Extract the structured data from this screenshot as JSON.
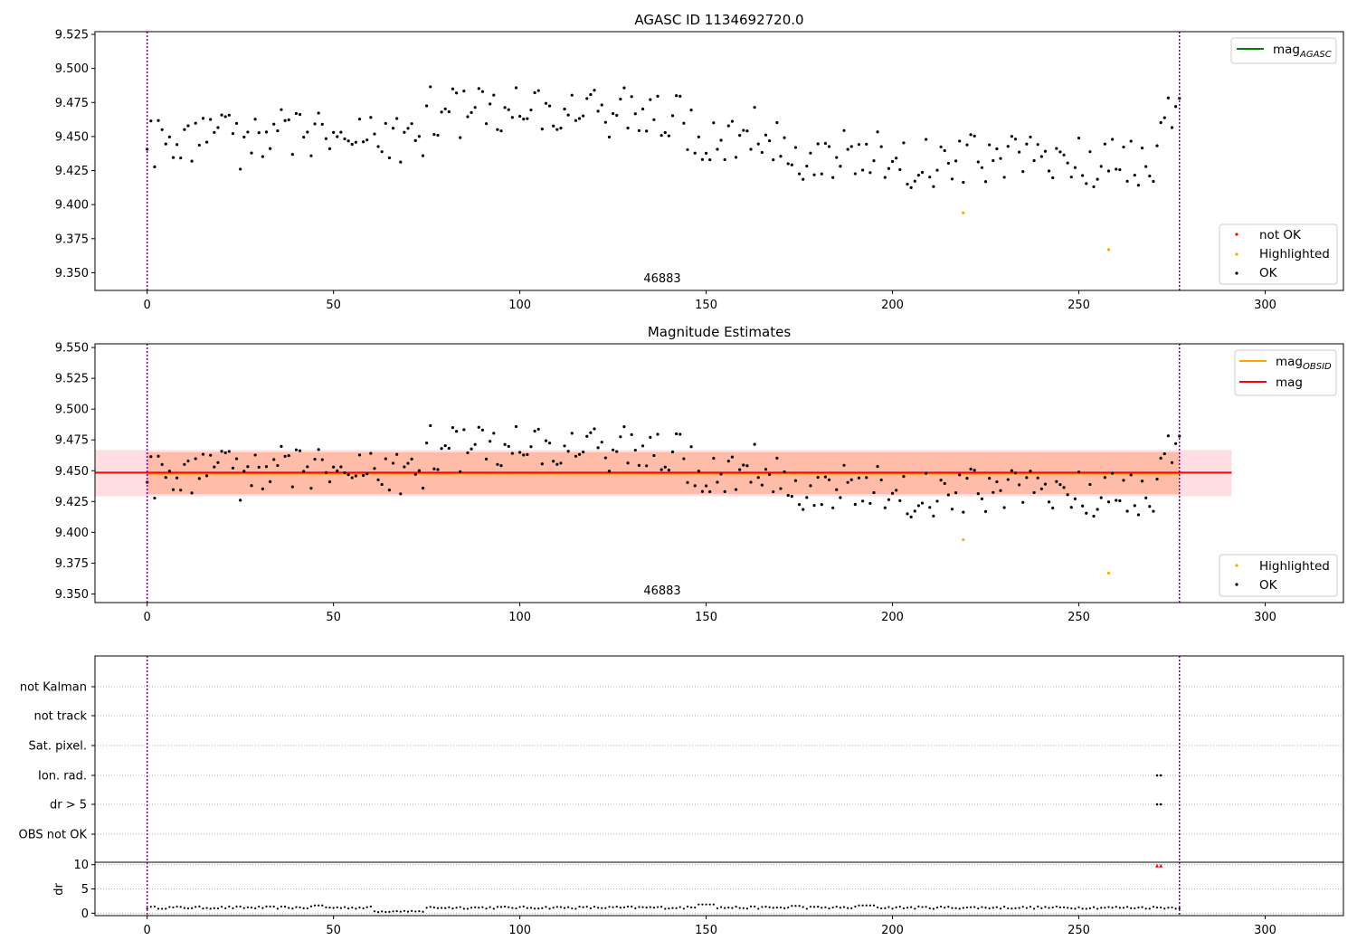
{
  "chart_data": [
    {
      "type": "scatter",
      "title": "AGASC ID 1134692720.0",
      "xlim": [
        -14,
        321
      ],
      "ylim": [
        9.337,
        9.527
      ],
      "xticks": [
        0,
        50,
        100,
        150,
        200,
        250,
        300
      ],
      "yticks": [
        "9.350",
        "9.375",
        "9.400",
        "9.425",
        "9.450",
        "9.475",
        "9.500",
        "9.525"
      ],
      "vlines": [
        0,
        277
      ],
      "annotation": {
        "text": "46883",
        "x": 138.5
      },
      "legends": [
        {
          "placement": "top-right",
          "entries": [
            {
              "label": "mag",
              "sub": "AGASC",
              "color": "#008000",
              "kind": "line"
            }
          ]
        },
        {
          "placement": "bottom-right",
          "entries": [
            {
              "label": "not OK",
              "color": "#ff0000",
              "kind": "dot"
            },
            {
              "label": "Highlighted",
              "color": "#ffa500",
              "kind": "dot"
            },
            {
              "label": "OK",
              "color": "#000000",
              "kind": "dot"
            }
          ]
        }
      ],
      "colors": {
        "ok": "#000000",
        "highlighted": "#ffa500",
        "not_ok": "#ff0000",
        "vline": "#800080"
      }
    },
    {
      "type": "scatter",
      "title": "Magnitude Estimates",
      "xlim": [
        -14,
        321
      ],
      "ylim": [
        9.343,
        9.553
      ],
      "xticks": [
        0,
        50,
        100,
        150,
        200,
        250,
        300
      ],
      "yticks": [
        "9.350",
        "9.375",
        "9.400",
        "9.425",
        "9.450",
        "9.475",
        "9.500",
        "9.525",
        "9.550"
      ],
      "vlines": [
        0,
        277
      ],
      "annotation": {
        "text": "46883",
        "x": 138.5
      },
      "mag": 9.4485,
      "mag_obsid": 9.4475,
      "band_outer": [
        9.43,
        9.466
      ],
      "band_inner": [
        9.431,
        9.465
      ],
      "band_x": [
        -14,
        291
      ],
      "legends": [
        {
          "placement": "top-right",
          "entries": [
            {
              "label": "mag",
              "sub": "OBSID",
              "color": "#ffa500",
              "kind": "line"
            },
            {
              "label": "mag",
              "sub": "",
              "color": "#ff0000",
              "kind": "line"
            }
          ]
        },
        {
          "placement": "bottom-right",
          "entries": [
            {
              "label": "Highlighted",
              "color": "#ffa500",
              "kind": "dot"
            },
            {
              "label": "OK",
              "color": "#000000",
              "kind": "dot"
            }
          ]
        }
      ]
    },
    {
      "type": "scatter",
      "title": "",
      "xlim": [
        -14,
        321
      ],
      "flag_labels": [
        "not Kalman",
        "not track",
        "Sat. pixel.",
        "Ion. rad.",
        "dr > 5",
        "OBS not OK"
      ],
      "flag_points": {
        "Ion. rad.": [
          271,
          272
        ],
        "dr > 5": [
          271,
          272
        ]
      },
      "vlines": [
        0,
        277
      ]
    },
    {
      "type": "scatter",
      "title": "",
      "ylabel": "dr",
      "xlim": [
        -14,
        321
      ],
      "ylim": [
        -0.5,
        10.5
      ],
      "xticks": [
        0,
        50,
        100,
        150,
        200,
        250,
        300
      ],
      "yticks": [
        0,
        5,
        10
      ],
      "vlines": [
        0,
        277
      ],
      "red_points": [
        {
          "x": 271,
          "y": 9.8
        },
        {
          "x": 272,
          "y": 9.8
        }
      ]
    }
  ]
}
